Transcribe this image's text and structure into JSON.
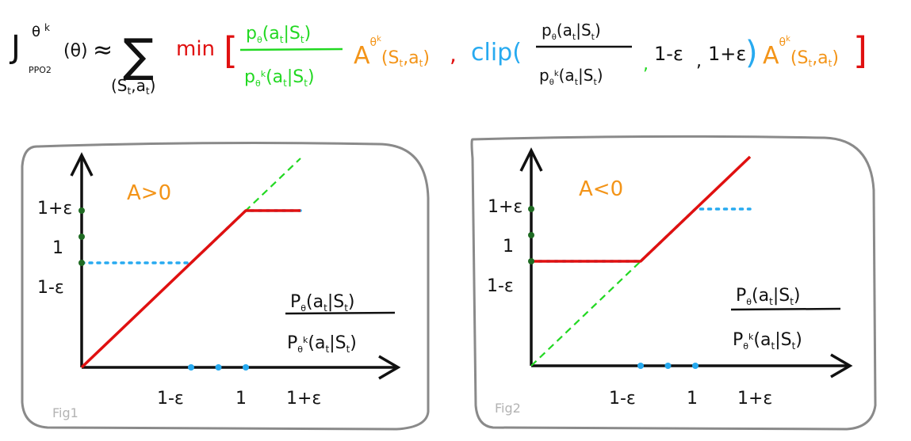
{
  "formula": {
    "J": "J",
    "sub_ppo2": "PPO2",
    "sup_theta_k": "θ",
    "sup_k": "k",
    "theta_arg": "(θ)",
    "approx": "≈",
    "sum_symbol": "∑",
    "sum_sub": "(S",
    "sum_sub_t": "t",
    "sum_sub_a": ",a",
    "sum_sub_t2": "t",
    "sum_sub_close": ")",
    "min": "min",
    "open_bracket": "[",
    "ratio_num": "p",
    "ratio_num_sub": "θ",
    "ratio_num_rest": "(a",
    "ratio_num_t": "t",
    "ratio_num_bar": "|S",
    "ratio_num_t2": "t",
    "ratio_num_close": ")",
    "ratio_den": "p",
    "ratio_den_sub": "θ",
    "ratio_den_k": "k",
    "ratio_den_rest": "(a",
    "ratio_den_t": "t",
    "ratio_den_bar": "|S",
    "ratio_den_t2": "t",
    "ratio_den_close": ")",
    "adv": "A",
    "adv_sup": "θ",
    "adv_sup_k": "k",
    "adv_arg": "(S",
    "adv_arg_t": "t",
    "adv_arg_mid": ",a",
    "adv_arg_t2": "t",
    "adv_arg_close": ")",
    "comma1": ",",
    "clip": "clip(",
    "clip_num": "p",
    "clip_num_sub": "θ",
    "clip_num_rest": "(a",
    "clip_num_t": "t",
    "clip_num_bar": "|S",
    "clip_num_t2": "t",
    "clip_num_close": ")",
    "clip_den": "p",
    "clip_den_sub": "θ",
    "clip_den_k": "k",
    "clip_den_rest": "(a",
    "clip_den_t": "t",
    "clip_den_bar": "|S",
    "clip_den_t2": "t",
    "clip_den_close": ")",
    "comma2": ",",
    "lower": "1-ε",
    "comma3": ",",
    "upper": "1+ε",
    "clip_close": ")",
    "adv2": "A",
    "adv2_sup": "θ",
    "adv2_sup_k": "k",
    "adv2_arg": "(S",
    "adv2_arg_t": "t",
    "adv2_arg_mid": ",a",
    "adv2_arg_t2": "t",
    "adv2_arg_close": ")",
    "close_bracket": "]"
  },
  "colors": {
    "black": "#111111",
    "red": "#e01010",
    "green": "#22d822",
    "orange": "#f39418",
    "blue": "#27aaf0",
    "dark_green": "#1f6b23",
    "panel": "#8a8a8a",
    "fig_label": "#b3b3b3"
  },
  "panels": [
    {
      "id": "fig1",
      "label": "Fig1",
      "condition": "A>0",
      "y_ticks": [
        "1+ε",
        "1",
        "1-ε"
      ],
      "x_ticks": [
        "1-ε",
        "1",
        "1+ε"
      ],
      "axis_title_num": "P",
      "axis_title_num_sub": "θ",
      "axis_title_num_rest": "(a",
      "axis_title_num_t": "t",
      "axis_title_num_bar": "|S",
      "axis_title_num_t2": "t",
      "axis_title_num_close": ")",
      "axis_title_den": "P",
      "axis_title_den_sub": "θ",
      "axis_title_den_k": "k",
      "axis_title_den_rest": "(a",
      "axis_title_den_t": "t",
      "axis_title_den_bar": "|S",
      "axis_title_den_t2": "t",
      "axis_title_den_close": ")",
      "clipped_objective": [
        [
          0,
          0
        ],
        [
          1.2,
          1.2
        ],
        [
          1.6,
          1.2
        ]
      ],
      "clip_term": [
        [
          0,
          0.8
        ],
        [
          0.8,
          0.8
        ],
        [
          1.2,
          1.2
        ],
        [
          1.6,
          1.2
        ]
      ],
      "unclipped_term": [
        [
          0,
          0
        ],
        [
          1.6,
          1.6
        ]
      ]
    },
    {
      "id": "fig2",
      "label": "Fig2",
      "condition": "A<0",
      "y_ticks": [
        "1+ε",
        "1",
        "1-ε"
      ],
      "x_ticks": [
        "1-ε",
        "1",
        "1+ε"
      ],
      "axis_title_num": "P",
      "axis_title_num_sub": "θ",
      "axis_title_num_rest": "(a",
      "axis_title_num_t": "t",
      "axis_title_num_bar": "|S",
      "axis_title_num_t2": "t",
      "axis_title_num_close": ")",
      "axis_title_den": "P",
      "axis_title_den_sub": "θ",
      "axis_title_den_k": "k",
      "axis_title_den_rest": "(a",
      "axis_title_den_t": "t",
      "axis_title_den_bar": "|S",
      "axis_title_den_t2": "t",
      "axis_title_den_close": ")",
      "clipped_objective": [
        [
          0,
          0.8
        ],
        [
          0.8,
          0.8
        ],
        [
          1.6,
          1.6
        ]
      ],
      "clip_term": [
        [
          0,
          0.8
        ],
        [
          0.8,
          0.8
        ],
        [
          1.2,
          1.2
        ],
        [
          1.6,
          1.2
        ]
      ],
      "unclipped_term": [
        [
          0,
          0
        ],
        [
          1.6,
          1.6
        ]
      ]
    }
  ]
}
